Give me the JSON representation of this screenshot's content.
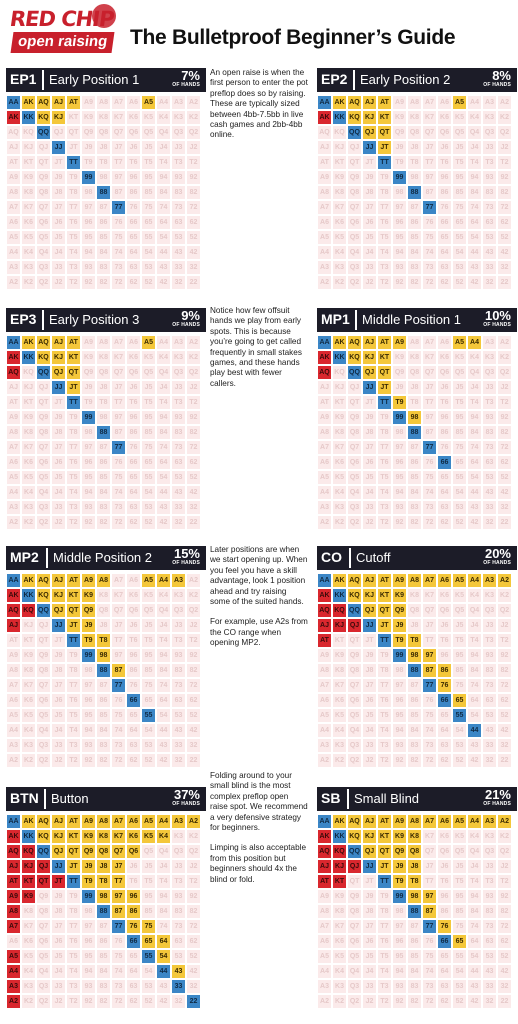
{
  "header": {
    "logo_line1": "RED CHIP",
    "logo_line2": "open raising",
    "title": "The Bulletproof Beginner’s Guide"
  },
  "ranks": [
    "A",
    "K",
    "Q",
    "J",
    "T",
    "9",
    "8",
    "7",
    "6",
    "5",
    "4",
    "3",
    "2"
  ],
  "pct_unit": "OF HANDS",
  "colors": {
    "pair": "#3b86c6",
    "suited": "#f4c73a",
    "offsuit": "#d9272e",
    "fold": "#fbeaea",
    "header_bg": "#1c1c28"
  },
  "panels": [
    {
      "id": "ep1",
      "code": "EP1",
      "name": "Early Position 1",
      "pct": "7%",
      "pairs": [
        "AA",
        "KK",
        "QQ",
        "JJ",
        "TT",
        "99",
        "88",
        "77"
      ],
      "suited": [
        "AKs",
        "AQs",
        "AJs",
        "ATs",
        "A5s",
        "KQs",
        "KJs"
      ],
      "offsuit": [
        "AKo"
      ]
    },
    {
      "id": "ep2",
      "code": "EP2",
      "name": "Early Position 2",
      "pct": "8%",
      "pairs": [
        "AA",
        "KK",
        "QQ",
        "JJ",
        "TT",
        "99",
        "88",
        "77"
      ],
      "suited": [
        "AKs",
        "AQs",
        "AJs",
        "ATs",
        "A5s",
        "KQs",
        "KJs",
        "KTs",
        "QJs",
        "QTs",
        "JTs"
      ],
      "offsuit": [
        "AKo"
      ]
    },
    {
      "id": "ep3",
      "code": "EP3",
      "name": "Early Position 3",
      "pct": "9%",
      "pairs": [
        "AA",
        "KK",
        "QQ",
        "JJ",
        "TT",
        "99",
        "88",
        "77"
      ],
      "suited": [
        "AKs",
        "AQs",
        "AJs",
        "ATs",
        "A5s",
        "KQs",
        "KJs",
        "KTs",
        "QJs",
        "QTs",
        "JTs"
      ],
      "offsuit": [
        "AKo",
        "AQo"
      ]
    },
    {
      "id": "mp1",
      "code": "MP1",
      "name": "Middle Position 1",
      "pct": "10%",
      "pairs": [
        "AA",
        "KK",
        "QQ",
        "JJ",
        "TT",
        "99",
        "88",
        "77",
        "66"
      ],
      "suited": [
        "AKs",
        "AQs",
        "AJs",
        "ATs",
        "A9s",
        "A5s",
        "A4s",
        "KQs",
        "KJs",
        "KTs",
        "QJs",
        "QTs",
        "JTs",
        "T9s",
        "98s"
      ],
      "offsuit": [
        "AKo",
        "AQo"
      ]
    },
    {
      "id": "mp2",
      "code": "MP2",
      "name": "Middle Position 2",
      "pct": "15%",
      "pairs": [
        "AA",
        "KK",
        "QQ",
        "JJ",
        "TT",
        "99",
        "88",
        "77",
        "66",
        "55"
      ],
      "suited": [
        "AKs",
        "AQs",
        "AJs",
        "ATs",
        "A9s",
        "A8s",
        "A5s",
        "A4s",
        "A3s",
        "KQs",
        "KJs",
        "KTs",
        "K9s",
        "QJs",
        "QTs",
        "Q9s",
        "JTs",
        "J9s",
        "T9s",
        "T8s",
        "98s",
        "87s"
      ],
      "offsuit": [
        "AKo",
        "AQo",
        "KQo",
        "AJo"
      ]
    },
    {
      "id": "co",
      "code": "CO",
      "name": "Cutoff",
      "pct": "20%",
      "pairs": [
        "AA",
        "KK",
        "QQ",
        "JJ",
        "TT",
        "99",
        "88",
        "77",
        "66",
        "55",
        "44"
      ],
      "suited": [
        "AKs",
        "AQs",
        "AJs",
        "ATs",
        "A9s",
        "A8s",
        "A7s",
        "A6s",
        "A5s",
        "A4s",
        "A3s",
        "A2s",
        "KQs",
        "KJs",
        "KTs",
        "K9s",
        "QJs",
        "QTs",
        "Q9s",
        "JTs",
        "J9s",
        "T9s",
        "T8s",
        "98s",
        "97s",
        "87s",
        "86s",
        "76s",
        "65s"
      ],
      "offsuit": [
        "AKo",
        "AQo",
        "KQo",
        "AJo",
        "KJo",
        "QJo",
        "ATo"
      ]
    },
    {
      "id": "btn",
      "code": "BTN",
      "name": "Button",
      "pct": "37%",
      "pairs": [
        "AA",
        "KK",
        "QQ",
        "JJ",
        "TT",
        "99",
        "88",
        "77",
        "66",
        "55",
        "44",
        "33",
        "22"
      ],
      "suited": [
        "AKs",
        "AQs",
        "AJs",
        "ATs",
        "A9s",
        "A8s",
        "A7s",
        "A6s",
        "A5s",
        "A4s",
        "A3s",
        "A2s",
        "KQs",
        "KJs",
        "KTs",
        "K9s",
        "K8s",
        "K7s",
        "K6s",
        "K5s",
        "K4s",
        "QJs",
        "QTs",
        "Q9s",
        "Q8s",
        "Q7s",
        "Q6s",
        "JTs",
        "J9s",
        "J8s",
        "J7s",
        "T9s",
        "T8s",
        "T7s",
        "98s",
        "97s",
        "96s",
        "87s",
        "86s",
        "76s",
        "75s",
        "65s",
        "64s",
        "54s",
        "43s"
      ],
      "offsuit": [
        "AKo",
        "AQo",
        "KQo",
        "AJo",
        "KJo",
        "QJo",
        "ATo",
        "KTo",
        "QTo",
        "JTo",
        "A9o",
        "K9o",
        "A8o",
        "A7o",
        "A5o",
        "A4o",
        "A3o",
        "A2o"
      ]
    },
    {
      "id": "sb",
      "code": "SB",
      "name": "Small Blind",
      "pct": "21%",
      "pairs": [
        "AA",
        "KK",
        "QQ",
        "JJ",
        "TT",
        "99",
        "88",
        "77",
        "66"
      ],
      "suited": [
        "AKs",
        "AQs",
        "AJs",
        "ATs",
        "A9s",
        "A8s",
        "A7s",
        "A6s",
        "A5s",
        "A4s",
        "A3s",
        "A2s",
        "KQs",
        "KJs",
        "KTs",
        "K9s",
        "K8s",
        "QJs",
        "QTs",
        "Q9s",
        "Q8s",
        "JTs",
        "J9s",
        "J8s",
        "T9s",
        "T8s",
        "98s",
        "97s",
        "87s",
        "76s",
        "65s"
      ],
      "offsuit": [
        "AKo",
        "AQo",
        "KQo",
        "AJo",
        "KJo",
        "QJo",
        "ATo",
        "KTo"
      ]
    }
  ],
  "notes": {
    "n1": [
      "An open raise is when the first person to enter the pot preflop does so by raising. These are typically sized between 4bb-7.5bb in live cash games and 2bb-4bb online."
    ],
    "n2": [
      "Notice how few offsuit hands we play from early spots. This is because you’re going to get called frequently in small stakes games, and these hands play best with fewer callers."
    ],
    "n3": [
      "Later positions are when we start opening up. When you feel you have a skill advantage, look 1 position ahead and try raising some of the suited hands.",
      "For example, use A2s from the CO range when opening MP2."
    ],
    "n4": [
      "Folding around to your small blind is the most complex preflop open raise spot. We recommend a very defensive strategy for beginners.",
      "Limping is also acceptable from this position but beginners should 4x the blind or fold."
    ]
  }
}
